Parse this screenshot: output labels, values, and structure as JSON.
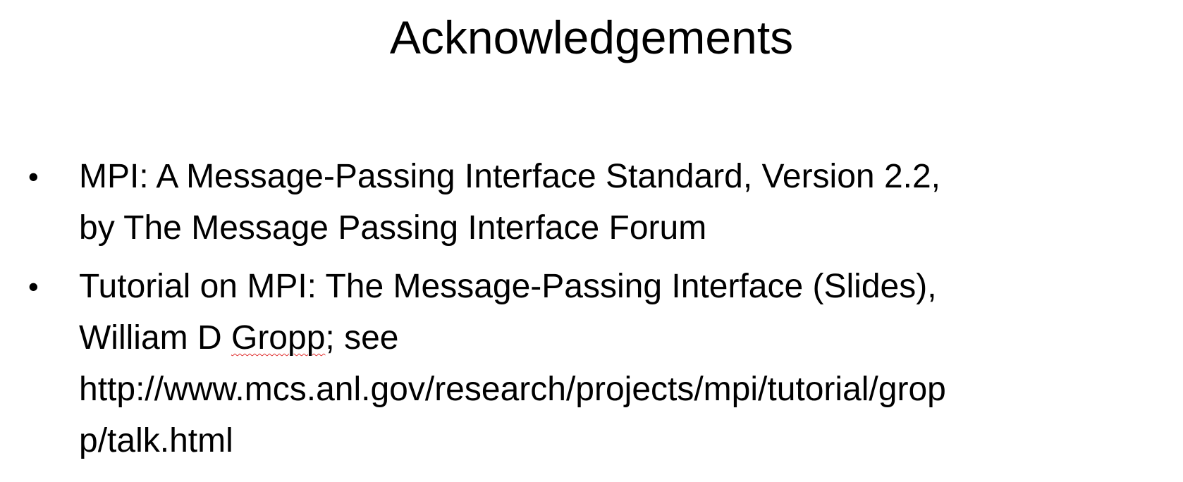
{
  "slide": {
    "title": "Acknowledgements",
    "bullet_char": "•",
    "items": [
      {
        "lines": [
          "MPI: A Message-Passing Interface Standard, Version 2.2,",
          "by The Message Passing Interface Forum"
        ]
      },
      {
        "line1": "Tutorial on MPI: The Message-Passing Interface (Slides),",
        "line2_prefix": "William D ",
        "line2_flagged": "Gropp",
        "line2_suffix": "; see",
        "url_line1": "http://www.mcs.anl.gov/research/projects/mpi/tutorial/grop",
        "url_line2": "p/talk.html"
      }
    ],
    "spellcheck_underline_color": "#e03030"
  }
}
